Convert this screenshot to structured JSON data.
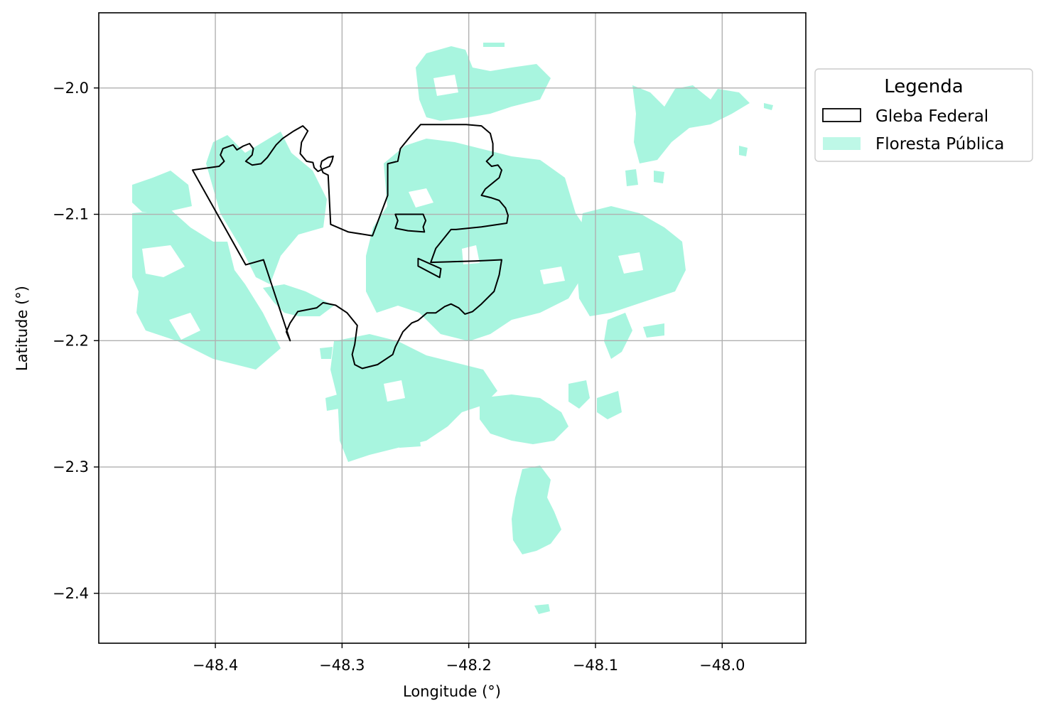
{
  "chart_data": {
    "type": "map",
    "xlabel": "Longitude (°)",
    "ylabel": "Latitude (°)",
    "xlim": [
      -48.492,
      -47.934
    ],
    "ylim": [
      -2.4395,
      -1.9405
    ],
    "xticks": [
      -48.4,
      -48.3,
      -48.2,
      -48.1,
      -48.0
    ],
    "yticks": [
      -2.0,
      -2.1,
      -2.2,
      -2.3,
      -2.4
    ],
    "xtick_labels": [
      "−48.4",
      "−48.3",
      "−48.2",
      "−48.1",
      "−48.0"
    ],
    "ytick_labels": [
      "−2.0",
      "−2.1",
      "−2.2",
      "−2.3",
      "−2.4"
    ],
    "grid": true,
    "legend": {
      "title": "Legenda",
      "placement": "outside-upper-right",
      "entries": [
        {
          "label": "Gleba Federal",
          "style": "outline",
          "color": "#000000"
        },
        {
          "label": "Floresta Pública",
          "style": "fill",
          "color": "#a8f5df"
        }
      ]
    },
    "colors": {
      "forest": "#a8f5df",
      "gleba_edge": "#000000",
      "grid": "#b0b0b0"
    },
    "gleba_outline": [
      [
        -48.418,
        -2.065
      ],
      [
        -48.397,
        -2.062
      ],
      [
        -48.393,
        -2.058
      ],
      [
        -48.396,
        -2.053
      ],
      [
        -48.394,
        -2.048
      ],
      [
        -48.386,
        -2.045
      ],
      [
        -48.383,
        -2.049
      ],
      [
        -48.378,
        -2.046
      ],
      [
        -48.373,
        -2.044
      ],
      [
        -48.37,
        -2.048
      ],
      [
        -48.371,
        -2.053
      ],
      [
        -48.376,
        -2.058
      ],
      [
        -48.371,
        -2.061
      ],
      [
        -48.364,
        -2.06
      ],
      [
        -48.359,
        -2.055
      ],
      [
        -48.352,
        -2.045
      ],
      [
        -48.347,
        -2.04
      ],
      [
        -48.338,
        -2.034
      ],
      [
        -48.331,
        -2.03
      ],
      [
        -48.327,
        -2.034
      ],
      [
        -48.332,
        -2.043
      ],
      [
        -48.333,
        -2.052
      ],
      [
        -48.328,
        -2.058
      ],
      [
        -48.323,
        -2.059
      ],
      [
        -48.322,
        -2.063
      ],
      [
        -48.319,
        -2.066
      ],
      [
        -48.315,
        -2.064
      ],
      [
        -48.31,
        -2.062
      ],
      [
        -48.308,
        -2.058
      ],
      [
        -48.307,
        -2.054
      ],
      [
        -48.311,
        -2.055
      ],
      [
        -48.316,
        -2.058
      ],
      [
        -48.317,
        -2.062
      ],
      [
        -48.315,
        -2.067
      ],
      [
        -48.311,
        -2.069
      ],
      [
        -48.309,
        -2.108
      ],
      [
        -48.295,
        -2.114
      ],
      [
        -48.276,
        -2.117
      ],
      [
        -48.264,
        -2.085
      ],
      [
        -48.264,
        -2.06
      ],
      [
        -48.256,
        -2.058
      ],
      [
        -48.254,
        -2.048
      ],
      [
        -48.245,
        -2.037
      ],
      [
        -48.238,
        -2.029
      ],
      [
        -48.202,
        -2.029
      ],
      [
        -48.19,
        -2.03
      ],
      [
        -48.183,
        -2.036
      ],
      [
        -48.181,
        -2.044
      ],
      [
        -48.181,
        -2.053
      ],
      [
        -48.186,
        -2.058
      ],
      [
        -48.182,
        -2.062
      ],
      [
        -48.177,
        -2.061
      ],
      [
        -48.174,
        -2.065
      ],
      [
        -48.176,
        -2.071
      ],
      [
        -48.187,
        -2.08
      ],
      [
        -48.19,
        -2.085
      ],
      [
        -48.182,
        -2.087
      ],
      [
        -48.176,
        -2.089
      ],
      [
        -48.171,
        -2.095
      ],
      [
        -48.169,
        -2.101
      ],
      [
        -48.17,
        -2.107
      ],
      [
        -48.19,
        -2.11
      ],
      [
        -48.21,
        -2.112
      ],
      [
        -48.214,
        -2.112
      ],
      [
        -48.226,
        -2.127
      ],
      [
        -48.23,
        -2.138
      ],
      [
        -48.195,
        -2.137
      ],
      [
        -48.174,
        -2.136
      ],
      [
        -48.176,
        -2.148
      ],
      [
        -48.18,
        -2.161
      ],
      [
        -48.19,
        -2.171
      ],
      [
        -48.197,
        -2.177
      ],
      [
        -48.203,
        -2.179
      ],
      [
        -48.208,
        -2.174
      ],
      [
        -48.214,
        -2.171
      ],
      [
        -48.219,
        -2.173
      ],
      [
        -48.226,
        -2.178
      ],
      [
        -48.233,
        -2.178
      ],
      [
        -48.24,
        -2.184
      ],
      [
        -48.245,
        -2.186
      ],
      [
        -48.252,
        -2.193
      ],
      [
        -48.258,
        -2.205
      ],
      [
        -48.26,
        -2.211
      ],
      [
        -48.272,
        -2.219
      ],
      [
        -48.284,
        -2.222
      ],
      [
        -48.29,
        -2.219
      ],
      [
        -48.292,
        -2.211
      ],
      [
        -48.29,
        -2.203
      ],
      [
        -48.288,
        -2.188
      ],
      [
        -48.296,
        -2.178
      ],
      [
        -48.305,
        -2.172
      ],
      [
        -48.315,
        -2.17
      ],
      [
        -48.32,
        -2.174
      ],
      [
        -48.335,
        -2.177
      ],
      [
        -48.341,
        -2.186
      ],
      [
        -48.344,
        -2.193
      ],
      [
        -48.341,
        -2.2
      ],
      [
        -48.362,
        -2.136
      ],
      [
        -48.376,
        -2.14
      ]
    ],
    "gleba_inner_1": [
      [
        -48.258,
        -2.1
      ],
      [
        -48.246,
        -2.1
      ],
      [
        -48.236,
        -2.1
      ],
      [
        -48.234,
        -2.105
      ],
      [
        -48.236,
        -2.11
      ],
      [
        -48.235,
        -2.114
      ],
      [
        -48.248,
        -2.113
      ],
      [
        -48.258,
        -2.111
      ],
      [
        -48.256,
        -2.105
      ]
    ],
    "gleba_inner_2": [
      [
        -48.24,
        -2.135
      ],
      [
        -48.222,
        -2.143
      ],
      [
        -48.223,
        -2.15
      ],
      [
        -48.24,
        -2.141
      ]
    ]
  }
}
